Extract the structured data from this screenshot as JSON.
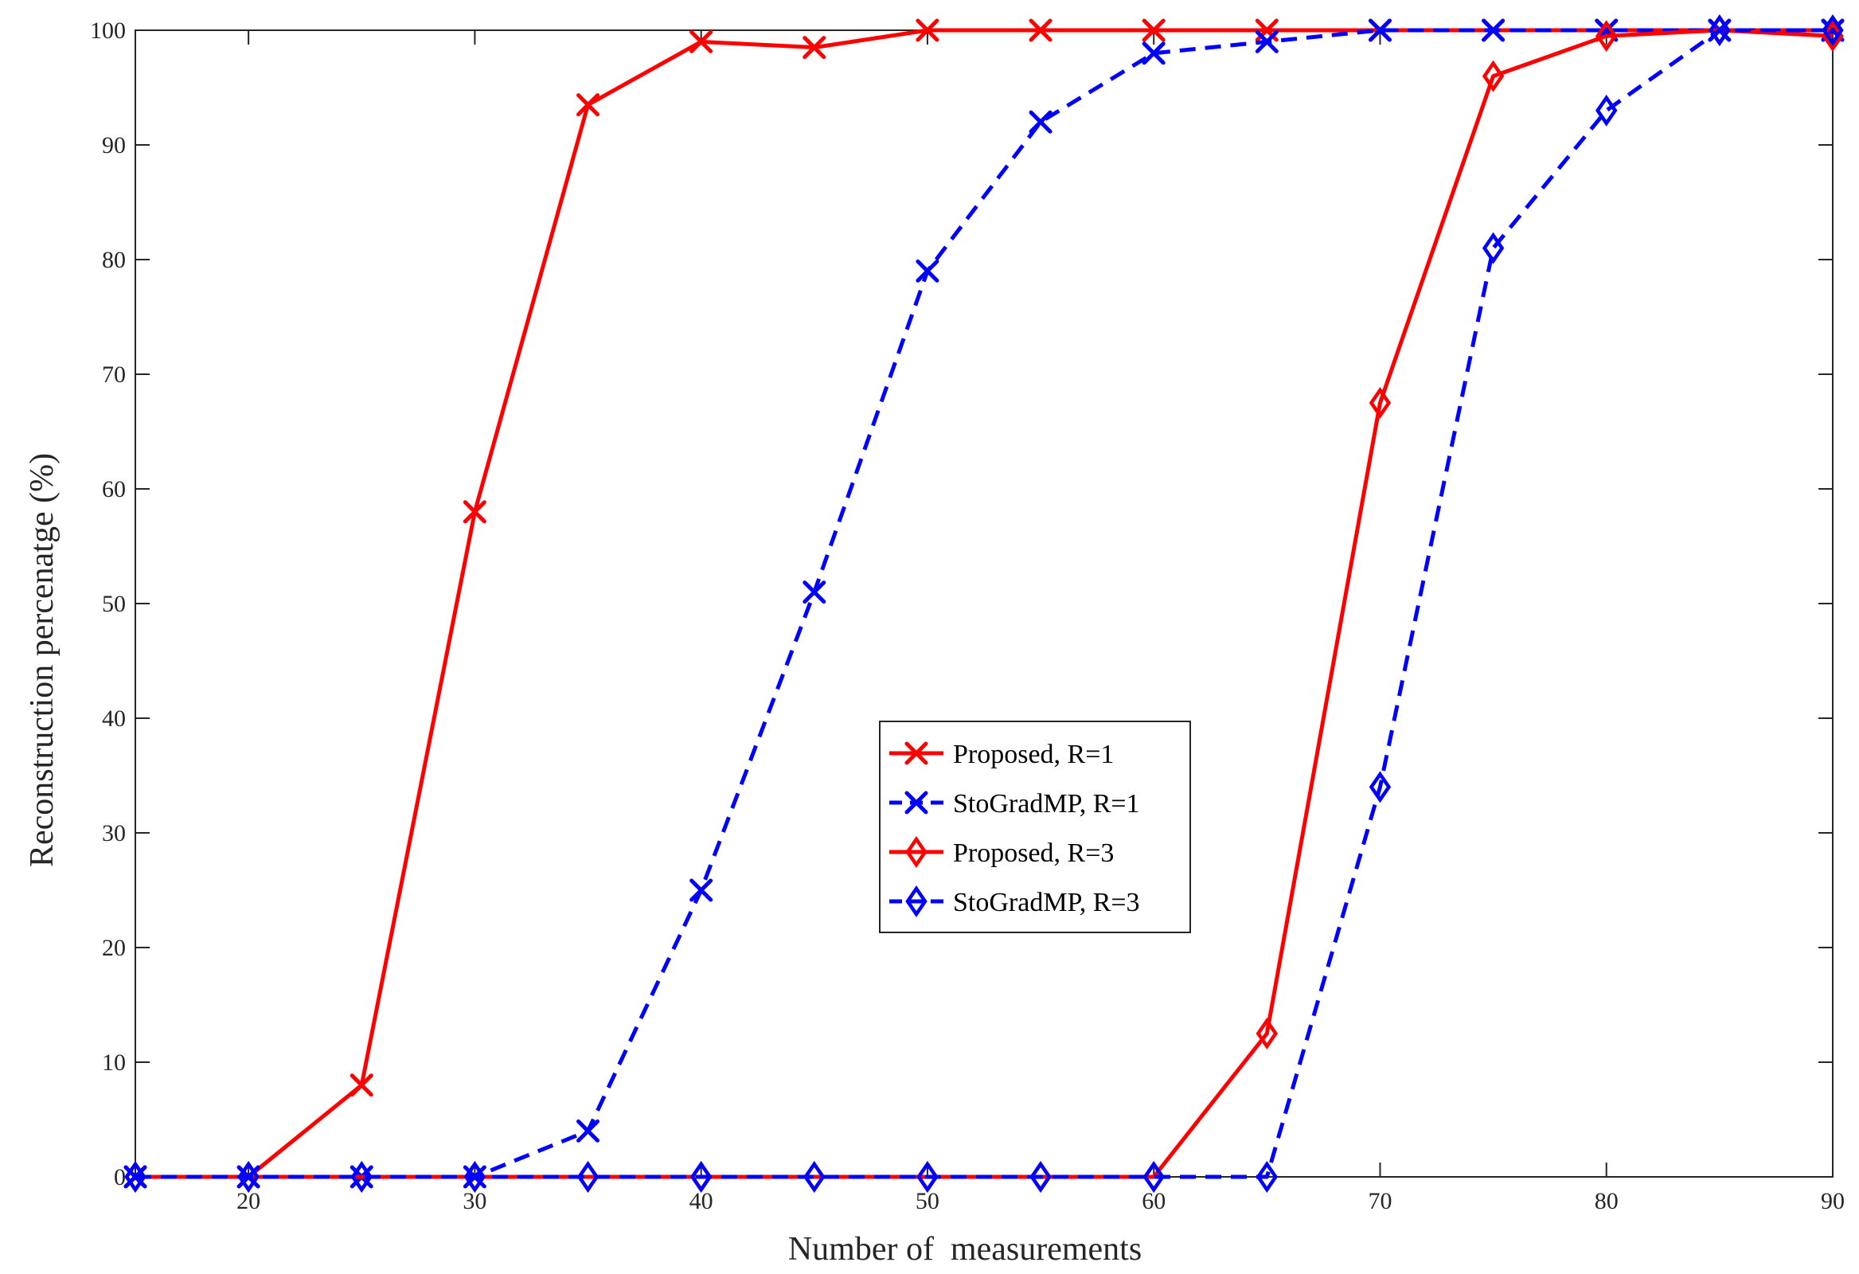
{
  "chart_data": {
    "type": "line",
    "x": [
      15,
      20,
      25,
      30,
      35,
      40,
      45,
      50,
      55,
      60,
      65,
      70,
      75,
      80,
      85,
      90
    ],
    "series": [
      {
        "name": "Proposed, R=1",
        "color": "#ff0000",
        "line": "solid",
        "marker": "x-mark",
        "values": [
          0,
          0,
          8,
          58,
          93.5,
          99,
          98.5,
          100,
          100,
          100,
          100,
          100,
          100,
          100,
          100,
          100
        ]
      },
      {
        "name": "StoGradMP, R=1",
        "color": "#0000ff",
        "line": "dashed",
        "marker": "x-mark",
        "values": [
          0,
          0,
          0,
          0,
          4,
          25,
          51,
          79,
          92,
          98,
          99,
          100,
          100,
          100,
          100,
          100
        ]
      },
      {
        "name": "Proposed, R=3",
        "color": "#ff0000",
        "line": "solid",
        "marker": "diamond",
        "values": [
          0,
          0,
          0,
          0,
          0,
          0,
          0,
          0,
          0,
          0,
          12.5,
          67.5,
          96,
          99.5,
          100,
          99.5
        ]
      },
      {
        "name": "StoGradMP, R=3",
        "color": "#0000ff",
        "line": "dashed",
        "marker": "diamond",
        "values": [
          0,
          0,
          0,
          0,
          0,
          0,
          0,
          0,
          0,
          0,
          0,
          34,
          81,
          93,
          100,
          100
        ]
      }
    ],
    "xlabel": "Number of  measurements",
    "ylabel": "Reconstruction percenatge (%)",
    "xlim": [
      15,
      90
    ],
    "ylim": [
      0,
      100
    ],
    "xticks": [
      20,
      30,
      40,
      50,
      60,
      70,
      80,
      90
    ],
    "yticks": [
      0,
      10,
      20,
      30,
      40,
      50,
      60,
      70,
      80,
      90,
      100
    ],
    "grid": false,
    "legend": "center-right"
  }
}
